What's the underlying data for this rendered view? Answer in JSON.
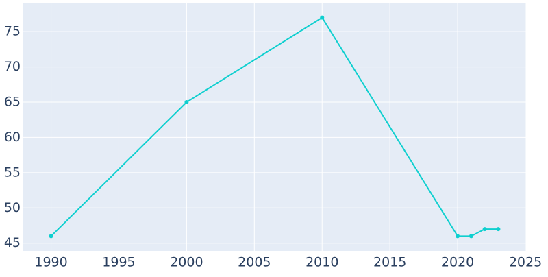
{
  "chart_data": {
    "type": "line",
    "x": [
      1990,
      2000,
      2010,
      2020,
      2021,
      2022,
      2023
    ],
    "series": [
      {
        "color": "#0fcfcf",
        "values": [
          46,
          65,
          77,
          46,
          46,
          47,
          47
        ]
      }
    ],
    "xlim": [
      1987.95,
      2025.05
    ],
    "xticks": [
      1990,
      1995,
      2000,
      2005,
      2010,
      2015,
      2020,
      2025
    ],
    "ylim": [
      43.9,
      79.1
    ],
    "yticks": [
      45,
      50,
      55,
      60,
      65,
      70,
      75
    ],
    "grid": true
  }
}
